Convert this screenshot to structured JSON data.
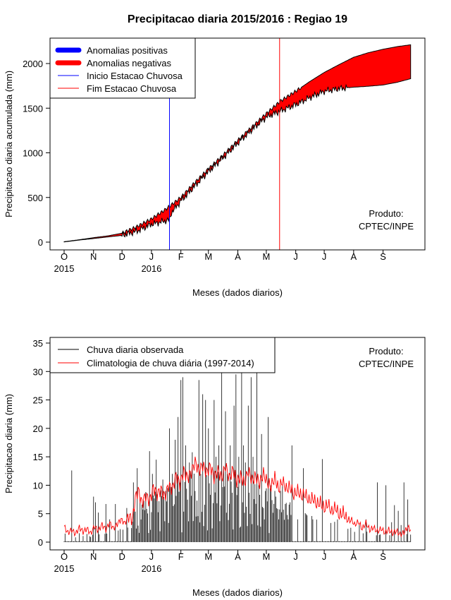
{
  "title": "Precipitacao diaria 2015/2016 : Regiao 19",
  "chart_data": [
    {
      "type": "area",
      "name": "accumulated",
      "ylabel": "Precipitacao diaria acumulada (mm)",
      "xlabel": "Meses (dados diarios)",
      "ylim": [
        0,
        2200
      ],
      "xlim_days": [
        0,
        365
      ],
      "y_ticks": [
        0,
        500,
        1000,
        1500,
        2000
      ],
      "x_ticks": [
        {
          "day": 0,
          "label": "O",
          "year": "2015"
        },
        {
          "day": 31,
          "label": "N"
        },
        {
          "day": 61,
          "label": "D"
        },
        {
          "day": 92,
          "label": "J",
          "year": "2016"
        },
        {
          "day": 123,
          "label": "F"
        },
        {
          "day": 152,
          "label": "M"
        },
        {
          "day": 183,
          "label": "A"
        },
        {
          "day": 213,
          "label": "M"
        },
        {
          "day": 244,
          "label": "J"
        },
        {
          "day": 274,
          "label": "J"
        },
        {
          "day": 305,
          "label": "A"
        },
        {
          "day": 336,
          "label": "S"
        }
      ],
      "climatology_cumulative": [
        [
          0,
          5
        ],
        [
          15,
          25
        ],
        [
          31,
          50
        ],
        [
          46,
          70
        ],
        [
          61,
          100
        ],
        [
          76,
          170
        ],
        [
          92,
          260
        ],
        [
          106,
          360
        ],
        [
          123,
          500
        ],
        [
          137,
          660
        ],
        [
          152,
          820
        ],
        [
          168,
          980
        ],
        [
          183,
          1140
        ],
        [
          198,
          1290
        ],
        [
          213,
          1440
        ],
        [
          228,
          1580
        ],
        [
          244,
          1690
        ],
        [
          259,
          1800
        ],
        [
          274,
          1900
        ],
        [
          290,
          1990
        ],
        [
          305,
          2070
        ],
        [
          320,
          2120
        ],
        [
          336,
          2160
        ],
        [
          351,
          2190
        ],
        [
          365,
          2210
        ]
      ],
      "observed_cumulative": [
        [
          0,
          2
        ],
        [
          15,
          22
        ],
        [
          31,
          40
        ],
        [
          46,
          58
        ],
        [
          61,
          75
        ],
        [
          76,
          120
        ],
        [
          92,
          200
        ],
        [
          111,
          250
        ],
        [
          113,
          330
        ],
        [
          123,
          460
        ],
        [
          137,
          620
        ],
        [
          152,
          790
        ],
        [
          168,
          950
        ],
        [
          183,
          1110
        ],
        [
          198,
          1260
        ],
        [
          213,
          1400
        ],
        [
          228,
          1470
        ],
        [
          244,
          1540
        ],
        [
          259,
          1620
        ],
        [
          274,
          1690
        ],
        [
          290,
          1720
        ],
        [
          305,
          1735
        ],
        [
          320,
          1745
        ],
        [
          336,
          1760
        ],
        [
          351,
          1790
        ],
        [
          365,
          1830
        ]
      ],
      "inicio_day": 111,
      "fim_day": 227,
      "legend": [
        {
          "label": "Anomalias positivas",
          "color": "#0000ff",
          "kind": "thick"
        },
        {
          "label": "Anomalias negativas",
          "color": "#ff0000",
          "kind": "thick"
        },
        {
          "label": "Inicio Estacao Chuvosa",
          "color": "#0000ff",
          "kind": "thin"
        },
        {
          "label": "Fim Estacao Chuvosa",
          "color": "#ff0000",
          "kind": "thin"
        }
      ],
      "product_label": [
        "Produto:",
        "CPTEC/INPE"
      ]
    },
    {
      "type": "bar+line",
      "name": "daily",
      "ylabel": "Precipitacao diaria (mm)",
      "xlabel": "Meses (dados diarios)",
      "ylim": [
        0,
        35
      ],
      "xlim_days": [
        0,
        365
      ],
      "y_ticks": [
        0,
        5,
        10,
        15,
        20,
        25,
        30,
        35
      ],
      "x_ticks": [
        {
          "day": 0,
          "label": "O",
          "year": "2015"
        },
        {
          "day": 31,
          "label": "N"
        },
        {
          "day": 61,
          "label": "D"
        },
        {
          "day": 92,
          "label": "J",
          "year": "2016"
        },
        {
          "day": 123,
          "label": "F"
        },
        {
          "day": 152,
          "label": "M"
        },
        {
          "day": 183,
          "label": "A"
        },
        {
          "day": 213,
          "label": "M"
        },
        {
          "day": 244,
          "label": "J"
        },
        {
          "day": 274,
          "label": "J"
        },
        {
          "day": 305,
          "label": "A"
        },
        {
          "day": 336,
          "label": "S"
        }
      ],
      "observed_daily_peaks": [
        [
          8,
          12.6
        ],
        [
          31,
          8
        ],
        [
          33,
          7
        ],
        [
          36,
          5.2
        ],
        [
          44,
          6.7
        ],
        [
          48,
          4
        ],
        [
          54,
          6.7
        ],
        [
          66,
          6
        ],
        [
          73,
          10.5
        ],
        [
          77,
          13
        ],
        [
          80,
          7
        ],
        [
          86,
          8.8
        ],
        [
          90,
          16
        ],
        [
          93,
          12
        ],
        [
          97,
          14.5
        ],
        [
          104,
          11
        ],
        [
          107,
          9
        ],
        [
          111,
          20
        ],
        [
          114,
          12
        ],
        [
          117,
          18
        ],
        [
          120,
          22
        ],
        [
          123,
          28.5
        ],
        [
          125,
          29
        ],
        [
          128,
          17
        ],
        [
          132,
          14
        ],
        [
          135,
          15.8
        ],
        [
          138,
          9
        ],
        [
          142,
          28.5
        ],
        [
          144,
          12
        ],
        [
          146,
          26
        ],
        [
          149,
          25
        ],
        [
          152,
          20
        ],
        [
          155,
          12
        ],
        [
          158,
          25
        ],
        [
          160,
          15
        ],
        [
          163,
          17
        ],
        [
          166,
          31
        ],
        [
          168,
          13
        ],
        [
          170,
          23
        ],
        [
          172,
          12
        ],
        [
          175,
          17
        ],
        [
          179,
          24
        ],
        [
          181,
          29.5
        ],
        [
          184,
          15
        ],
        [
          187,
          30.5
        ],
        [
          189,
          17
        ],
        [
          191,
          14
        ],
        [
          194,
          24
        ],
        [
          197,
          29
        ],
        [
          199,
          15
        ],
        [
          203,
          31
        ],
        [
          205,
          10
        ],
        [
          208,
          19
        ],
        [
          210,
          6
        ],
        [
          212,
          9
        ],
        [
          215,
          22
        ],
        [
          218,
          10
        ],
        [
          223,
          8
        ],
        [
          226,
          4
        ],
        [
          236,
          4
        ],
        [
          240,
          17
        ],
        [
          246,
          4
        ],
        [
          252,
          13
        ],
        [
          262,
          4
        ],
        [
          272,
          14.6
        ],
        [
          288,
          4
        ],
        [
          311,
          3
        ],
        [
          318,
          4
        ],
        [
          330,
          10.5
        ],
        [
          339,
          10
        ],
        [
          345,
          3.5
        ],
        [
          348,
          6.5
        ],
        [
          352,
          5.5
        ],
        [
          355,
          3
        ],
        [
          358,
          10.5
        ],
        [
          362,
          7.5
        ]
      ],
      "climatology_daily": [
        [
          0,
          2.8
        ],
        [
          4,
          1.6
        ],
        [
          8,
          2.2
        ],
        [
          12,
          1.4
        ],
        [
          16,
          2.6
        ],
        [
          20,
          1.8
        ],
        [
          24,
          2.4
        ],
        [
          28,
          1.5
        ],
        [
          32,
          2.8
        ],
        [
          36,
          2.0
        ],
        [
          40,
          3.1
        ],
        [
          44,
          2.2
        ],
        [
          48,
          3.4
        ],
        [
          52,
          2.4
        ],
        [
          56,
          3.2
        ],
        [
          60,
          4.0
        ],
        [
          64,
          3.3
        ],
        [
          68,
          4.6
        ],
        [
          72,
          4.0
        ],
        [
          75,
          7.8
        ],
        [
          78,
          9.2
        ],
        [
          82,
          6.8
        ],
        [
          86,
          8.3
        ],
        [
          90,
          7.2
        ],
        [
          94,
          9.6
        ],
        [
          98,
          8.4
        ],
        [
          102,
          9.3
        ],
        [
          106,
          8.0
        ],
        [
          110,
          10.0
        ],
        [
          114,
          9.3
        ],
        [
          118,
          11.8
        ],
        [
          122,
          10.2
        ],
        [
          126,
          12.6
        ],
        [
          130,
          11.3
        ],
        [
          134,
          12.3
        ],
        [
          138,
          14.2
        ],
        [
          142,
          12.5
        ],
        [
          146,
          13.6
        ],
        [
          150,
          12.2
        ],
        [
          154,
          13.4
        ],
        [
          158,
          11.3
        ],
        [
          162,
          12.6
        ],
        [
          166,
          11.2
        ],
        [
          170,
          13.5
        ],
        [
          174,
          11.2
        ],
        [
          178,
          12.8
        ],
        [
          182,
          10.6
        ],
        [
          186,
          11.6
        ],
        [
          190,
          10.3
        ],
        [
          194,
          12.6
        ],
        [
          198,
          10.8
        ],
        [
          202,
          11.6
        ],
        [
          206,
          10.3
        ],
        [
          210,
          12.1
        ],
        [
          214,
          10.5
        ],
        [
          218,
          9.8
        ],
        [
          222,
          11.4
        ],
        [
          226,
          9.2
        ],
        [
          230,
          10.8
        ],
        [
          234,
          9.3
        ],
        [
          238,
          9.8
        ],
        [
          242,
          8.2
        ],
        [
          246,
          9.1
        ],
        [
          250,
          8.0
        ],
        [
          254,
          8.5
        ],
        [
          258,
          7.2
        ],
        [
          262,
          7.8
        ],
        [
          266,
          6.6
        ],
        [
          270,
          7.0
        ],
        [
          274,
          5.8
        ],
        [
          278,
          6.8
        ],
        [
          282,
          5.2
        ],
        [
          286,
          6.2
        ],
        [
          290,
          4.6
        ],
        [
          294,
          5.3
        ],
        [
          298,
          3.8
        ],
        [
          302,
          4.2
        ],
        [
          306,
          3.0
        ],
        [
          310,
          3.6
        ],
        [
          314,
          2.3
        ],
        [
          318,
          3.4
        ],
        [
          322,
          2.1
        ],
        [
          326,
          2.6
        ],
        [
          330,
          1.8
        ],
        [
          334,
          2.4
        ],
        [
          338,
          1.6
        ],
        [
          342,
          2.2
        ],
        [
          346,
          1.5
        ],
        [
          350,
          2.0
        ],
        [
          354,
          1.3
        ],
        [
          358,
          1.7
        ],
        [
          362,
          2.6
        ],
        [
          365,
          2.2
        ]
      ],
      "legend": [
        {
          "label": "Chuva diaria observada",
          "color": "#000000"
        },
        {
          "label": "Climatologia de chuva diária (1997-2014)",
          "color": "#ff0000"
        }
      ],
      "product_label": [
        "Produto:",
        "CPTEC/INPE"
      ]
    }
  ]
}
